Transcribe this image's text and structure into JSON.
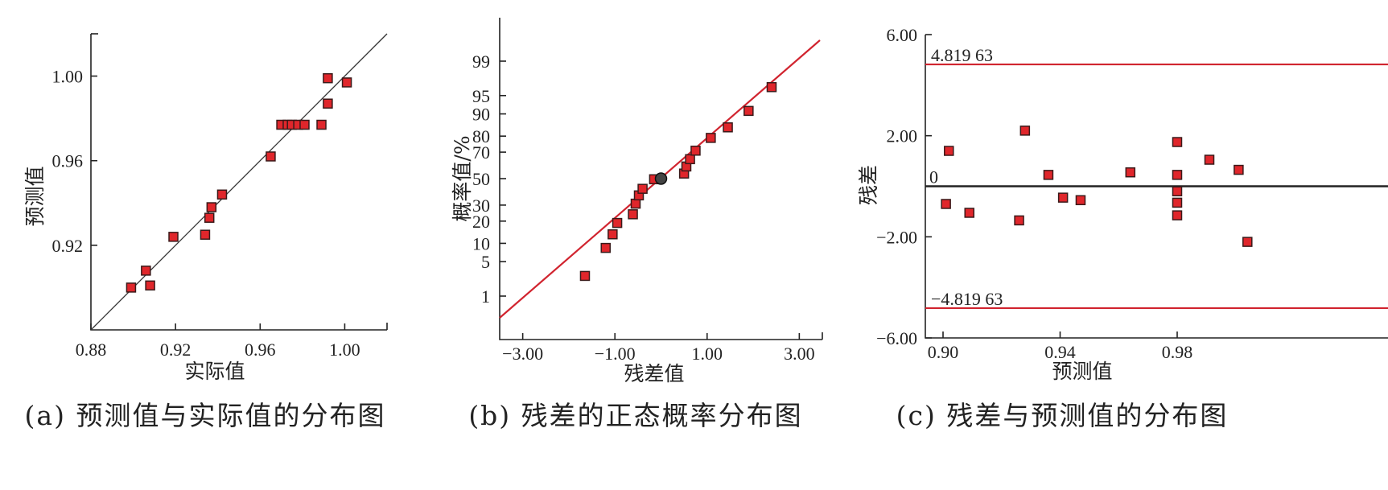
{
  "chart_data": [
    {
      "type": "scatter",
      "caption": "(a) 预测值与实际值的分布图",
      "xlabel": "实际值",
      "ylabel": "预测值",
      "xlim": [
        0.88,
        1.02
      ],
      "ylim": [
        0.88,
        1.02
      ],
      "xticks": [
        "0.88",
        "0.92",
        "0.96",
        "1.00"
      ],
      "yticks": [
        "0.92",
        "0.96",
        "1.00"
      ],
      "reference_line": "y = x",
      "points": [
        {
          "x": 0.899,
          "y": 0.9
        },
        {
          "x": 0.906,
          "y": 0.908
        },
        {
          "x": 0.908,
          "y": 0.901
        },
        {
          "x": 0.919,
          "y": 0.924
        },
        {
          "x": 0.934,
          "y": 0.925
        },
        {
          "x": 0.936,
          "y": 0.933
        },
        {
          "x": 0.937,
          "y": 0.938
        },
        {
          "x": 0.942,
          "y": 0.944
        },
        {
          "x": 0.965,
          "y": 0.962
        },
        {
          "x": 0.97,
          "y": 0.977
        },
        {
          "x": 0.973,
          "y": 0.977
        },
        {
          "x": 0.975,
          "y": 0.977
        },
        {
          "x": 0.978,
          "y": 0.977
        },
        {
          "x": 0.981,
          "y": 0.977
        },
        {
          "x": 0.989,
          "y": 0.977
        },
        {
          "x": 0.992,
          "y": 0.987
        },
        {
          "x": 0.992,
          "y": 0.999
        },
        {
          "x": 1.001,
          "y": 0.997
        }
      ]
    },
    {
      "type": "scatter",
      "caption": "(b) 残差的正态概率分布图",
      "xlabel": "残差值",
      "ylabel": "概率值/%",
      "xlim": [
        -3.5,
        3.5
      ],
      "y_scale": "normal-probability",
      "xticks": [
        "-3.00",
        "-1.00",
        "1.00",
        "3.00"
      ],
      "yticks": [
        "1",
        "5",
        "10",
        "20",
        "30",
        "50",
        "70",
        "80",
        "90",
        "95",
        "99"
      ],
      "reference_line": "fitted normal line (red)",
      "points": [
        {
          "x": -1.65,
          "y": 2.7
        },
        {
          "x": -1.2,
          "y": 8.5
        },
        {
          "x": -1.05,
          "y": 13.5
        },
        {
          "x": -0.95,
          "y": 19
        },
        {
          "x": -0.61,
          "y": 24
        },
        {
          "x": -0.55,
          "y": 31
        },
        {
          "x": -0.48,
          "y": 37
        },
        {
          "x": -0.4,
          "y": 42
        },
        {
          "x": -0.15,
          "y": 49.5
        },
        {
          "x": 0.5,
          "y": 54
        },
        {
          "x": 0.55,
          "y": 59.5
        },
        {
          "x": 0.63,
          "y": 65
        },
        {
          "x": 0.75,
          "y": 71
        },
        {
          "x": 1.08,
          "y": 79
        },
        {
          "x": 1.45,
          "y": 84.5
        },
        {
          "x": 1.9,
          "y": 91
        },
        {
          "x": 2.4,
          "y": 96.5
        }
      ],
      "highlight_point": {
        "x": 0.0,
        "y": 50
      }
    },
    {
      "type": "scatter",
      "caption": "(c) 残差与预测值的分布图",
      "xlabel": "预测值",
      "ylabel": "残差",
      "xlim": [
        0.89,
        1.01
      ],
      "ylim": [
        -6.0,
        6.0
      ],
      "xticks": [
        "0.90",
        "0.94",
        "0.98"
      ],
      "yticks": [
        "6.00",
        "2.00",
        "-2.00",
        "-6.00"
      ],
      "zero_label": "0",
      "limit_lines": [
        {
          "value": 4.81963,
          "label": "4.819 63",
          "color": "#d1242f"
        },
        {
          "value": -4.81963,
          "label": "-4.819 63",
          "color": "#d1242f"
        }
      ],
      "points": [
        {
          "x": 0.901,
          "y": -0.7
        },
        {
          "x": 0.902,
          "y": 1.4
        },
        {
          "x": 0.909,
          "y": -1.05
        },
        {
          "x": 0.926,
          "y": -1.35
        },
        {
          "x": 0.928,
          "y": 2.2
        },
        {
          "x": 0.936,
          "y": 0.45
        },
        {
          "x": 0.941,
          "y": -0.45
        },
        {
          "x": 0.947,
          "y": -0.55
        },
        {
          "x": 0.964,
          "y": 0.55
        },
        {
          "x": 0.98,
          "y": 1.75
        },
        {
          "x": 0.98,
          "y": 0.45
        },
        {
          "x": 0.98,
          "y": -0.2
        },
        {
          "x": 0.98,
          "y": -0.65
        },
        {
          "x": 0.98,
          "y": -1.15
        },
        {
          "x": 0.991,
          "y": 1.05
        },
        {
          "x": 1.001,
          "y": 0.65
        },
        {
          "x": 1.004,
          "y": -2.2
        }
      ]
    }
  ]
}
